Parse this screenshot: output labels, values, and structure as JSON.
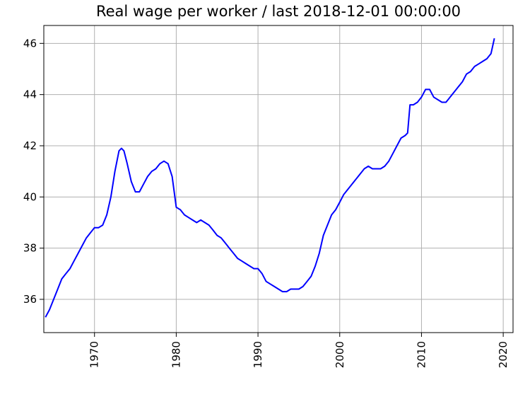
{
  "chart_data": {
    "type": "line",
    "title": "Real wage per worker / last 2018-12-01 00:00:00",
    "xlabel": "",
    "ylabel": "",
    "xlim": [
      1963.8,
      2021.2
    ],
    "ylim": [
      34.7,
      46.7
    ],
    "grid": true,
    "line_color": "#0000ff",
    "x_ticks": [
      1970,
      1980,
      1990,
      2000,
      2010,
      2020
    ],
    "x_tick_labels": [
      "1970",
      "1980",
      "1990",
      "2000",
      "2010",
      "2020"
    ],
    "y_ticks": [
      36,
      38,
      40,
      42,
      44,
      46
    ],
    "y_tick_labels": [
      "36",
      "38",
      "40",
      "42",
      "44",
      "46"
    ],
    "series": [
      {
        "x": [
          1964.0,
          1964.5,
          1965.0,
          1965.5,
          1966.0,
          1966.5,
          1967.0,
          1967.5,
          1968.0,
          1968.5,
          1969.0,
          1969.5,
          1970.0,
          1970.5,
          1971.0,
          1971.5,
          1972.0,
          1972.5,
          1973.0,
          1973.3,
          1973.6,
          1974.0,
          1974.5,
          1975.0,
          1975.5,
          1976.0,
          1976.5,
          1977.0,
          1977.5,
          1978.0,
          1978.5,
          1979.0,
          1979.5,
          1980.0,
          1980.5,
          1981.0,
          1981.5,
          1982.0,
          1982.5,
          1983.0,
          1983.5,
          1984.0,
          1984.5,
          1985.0,
          1985.5,
          1986.0,
          1986.5,
          1987.0,
          1987.5,
          1988.0,
          1988.5,
          1989.0,
          1989.5,
          1990.0,
          1990.5,
          1991.0,
          1991.5,
          1992.0,
          1992.5,
          1993.0,
          1993.5,
          1994.0,
          1994.5,
          1995.0,
          1995.5,
          1996.0,
          1996.5,
          1997.0,
          1997.5,
          1998.0,
          1998.5,
          1999.0,
          1999.5,
          2000.0,
          2000.5,
          2001.0,
          2001.5,
          2002.0,
          2002.5,
          2003.0,
          2003.5,
          2004.0,
          2004.5,
          2005.0,
          2005.5,
          2006.0,
          2006.5,
          2007.0,
          2007.5,
          2008.0,
          2008.3,
          2008.6,
          2009.0,
          2009.5,
          2010.0,
          2010.5,
          2011.0,
          2011.5,
          2012.0,
          2012.5,
          2013.0,
          2013.5,
          2014.0,
          2014.5,
          2015.0,
          2015.5,
          2016.0,
          2016.5,
          2017.0,
          2017.5,
          2018.0,
          2018.5,
          2018.92
        ],
        "values": [
          35.3,
          35.6,
          36.0,
          36.4,
          36.8,
          37.0,
          37.2,
          37.5,
          37.8,
          38.1,
          38.4,
          38.6,
          38.8,
          38.8,
          38.9,
          39.3,
          40.0,
          41.0,
          41.8,
          41.9,
          41.8,
          41.3,
          40.6,
          40.2,
          40.2,
          40.5,
          40.8,
          41.0,
          41.1,
          41.3,
          41.4,
          41.3,
          40.8,
          39.6,
          39.5,
          39.3,
          39.2,
          39.1,
          39.0,
          39.1,
          39.0,
          38.9,
          38.7,
          38.5,
          38.4,
          38.2,
          38.0,
          37.8,
          37.6,
          37.5,
          37.4,
          37.3,
          37.2,
          37.2,
          37.0,
          36.7,
          36.6,
          36.5,
          36.4,
          36.3,
          36.3,
          36.4,
          36.4,
          36.4,
          36.5,
          36.7,
          36.9,
          37.3,
          37.8,
          38.5,
          38.9,
          39.3,
          39.5,
          39.8,
          40.1,
          40.3,
          40.5,
          40.7,
          40.9,
          41.1,
          41.2,
          41.1,
          41.1,
          41.1,
          41.2,
          41.4,
          41.7,
          42.0,
          42.3,
          42.4,
          42.5,
          43.6,
          43.6,
          43.7,
          43.9,
          44.2,
          44.2,
          43.9,
          43.8,
          43.7,
          43.7,
          43.9,
          44.1,
          44.3,
          44.5,
          44.8,
          44.9,
          45.1,
          45.2,
          45.3,
          45.4,
          45.6,
          46.2
        ]
      }
    ]
  }
}
